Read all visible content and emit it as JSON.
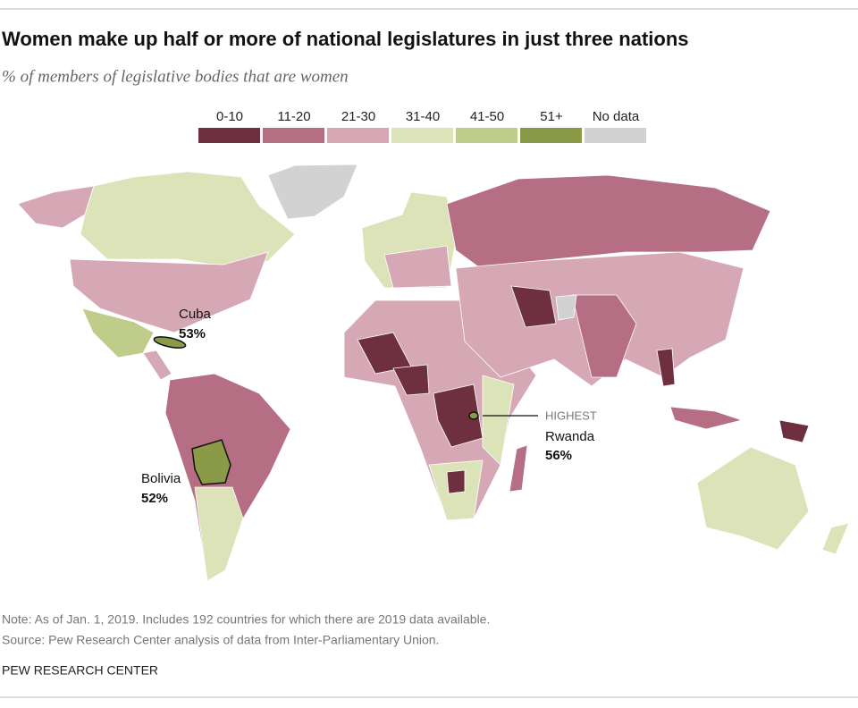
{
  "header": {
    "title": "Women make up half or more of national legislatures in just three nations",
    "subtitle": "% of members of legislative bodies that are women"
  },
  "legend": [
    {
      "label": "0-10",
      "color": "#6e2f3f"
    },
    {
      "label": "11-20",
      "color": "#b56e84"
    },
    {
      "label": "21-30",
      "color": "#d6a8b5"
    },
    {
      "label": "31-40",
      "color": "#dce3b9"
    },
    {
      "label": "41-50",
      "color": "#bfcc8a"
    },
    {
      "label": "51+",
      "color": "#8a9a47"
    },
    {
      "label": "No data",
      "color": "#d2d2d2"
    }
  ],
  "annotations": [
    {
      "country": "Cuba",
      "value": 53,
      "value_label": "53%"
    },
    {
      "note": "HIGHEST",
      "country": "Rwanda",
      "value": 56,
      "value_label": "56%"
    },
    {
      "country": "Bolivia",
      "value": 52,
      "value_label": "52%"
    }
  ],
  "footer": {
    "note": "Note: As of Jan. 1, 2019. Includes 192 countries for which there are 2019 data available.",
    "source": "Source: Pew Research Center analysis of data from Inter-Parliamentary Union.",
    "credit": "PEW RESEARCH CENTER"
  }
}
